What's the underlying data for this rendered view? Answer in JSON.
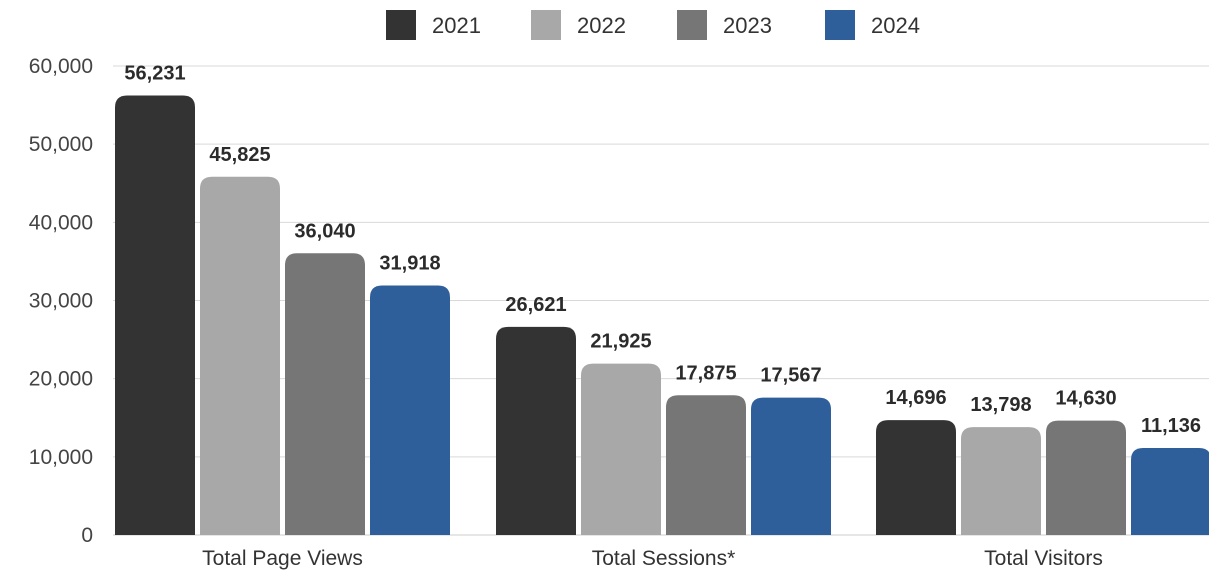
{
  "chart_data": {
    "type": "bar",
    "categories": [
      "Total Page Views",
      "Total Sessions*",
      "Total Visitors"
    ],
    "series": [
      {
        "name": "2021",
        "color": "#333333",
        "values": [
          56231,
          26621,
          14696
        ],
        "labels": [
          "56,231",
          "26,621",
          "14,696"
        ]
      },
      {
        "name": "2022",
        "color": "#a8a8a8",
        "values": [
          45825,
          21925,
          13798
        ],
        "labels": [
          "45,825",
          "21,925",
          "13,798"
        ]
      },
      {
        "name": "2023",
        "color": "#767676",
        "values": [
          36040,
          17875,
          14630
        ],
        "labels": [
          "36,040",
          "17,875",
          "14,630"
        ]
      },
      {
        "name": "2024",
        "color": "#2e5f9a",
        "values": [
          31918,
          17567,
          11136
        ],
        "labels": [
          "31,918",
          "17,567",
          "11,136"
        ]
      }
    ],
    "yticks": [
      "0",
      "10,000",
      "20,000",
      "30,000",
      "40,000",
      "50,000",
      "60,000"
    ],
    "ytick_values": [
      0,
      10000,
      20000,
      30000,
      40000,
      50000,
      60000
    ],
    "ylim": [
      0,
      60000
    ],
    "grid": true,
    "legend_position": "top-center",
    "title": "",
    "xlabel": "",
    "ylabel": ""
  }
}
